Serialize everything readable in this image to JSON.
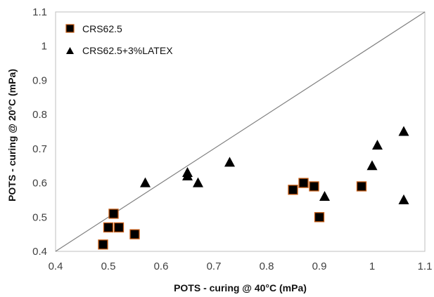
{
  "chart_data": {
    "type": "scatter",
    "xlabel": "POTS - curing @ 40°C (mPa)",
    "ylabel": "POTS - curing @ 20°C (mPa)",
    "xlim": [
      0.4,
      1.1
    ],
    "ylim": [
      0.4,
      1.1
    ],
    "x_ticks": [
      0.4,
      0.5,
      0.6,
      0.7,
      0.8,
      0.9,
      1.0,
      1.1
    ],
    "y_ticks": [
      0.4,
      0.5,
      0.6,
      0.7,
      0.8,
      0.9,
      1.0,
      1.1
    ],
    "x_tick_labels": [
      "0.4",
      "0.5",
      "0.6",
      "0.7",
      "0.8",
      "0.9",
      "1",
      "1.1"
    ],
    "y_tick_labels": [
      "0.4",
      "0.5",
      "0.6",
      "0.7",
      "0.8",
      "0.9",
      "1",
      "1.1"
    ],
    "grid": false,
    "legend_position": "top-left",
    "reference_line": {
      "from": [
        0.4,
        0.4
      ],
      "to": [
        1.1,
        1.1
      ]
    },
    "series": [
      {
        "name": "CRS62.5",
        "marker": "square",
        "color": "#000000",
        "edge_color": "#c55a11",
        "points": [
          {
            "x": 0.49,
            "y": 0.42
          },
          {
            "x": 0.5,
            "y": 0.47
          },
          {
            "x": 0.51,
            "y": 0.51
          },
          {
            "x": 0.52,
            "y": 0.47
          },
          {
            "x": 0.55,
            "y": 0.45
          },
          {
            "x": 0.85,
            "y": 0.58
          },
          {
            "x": 0.87,
            "y": 0.6
          },
          {
            "x": 0.89,
            "y": 0.59
          },
          {
            "x": 0.9,
            "y": 0.5
          },
          {
            "x": 0.98,
            "y": 0.59
          }
        ]
      },
      {
        "name": "CRS62.5+3%LATEX",
        "marker": "triangle",
        "color": "#000000",
        "points": [
          {
            "x": 0.57,
            "y": 0.6
          },
          {
            "x": 0.65,
            "y": 0.62
          },
          {
            "x": 0.65,
            "y": 0.63
          },
          {
            "x": 0.67,
            "y": 0.6
          },
          {
            "x": 0.73,
            "y": 0.66
          },
          {
            "x": 0.91,
            "y": 0.56
          },
          {
            "x": 1.0,
            "y": 0.65
          },
          {
            "x": 1.01,
            "y": 0.71
          },
          {
            "x": 1.06,
            "y": 0.75
          },
          {
            "x": 1.06,
            "y": 0.55
          }
        ]
      }
    ]
  }
}
